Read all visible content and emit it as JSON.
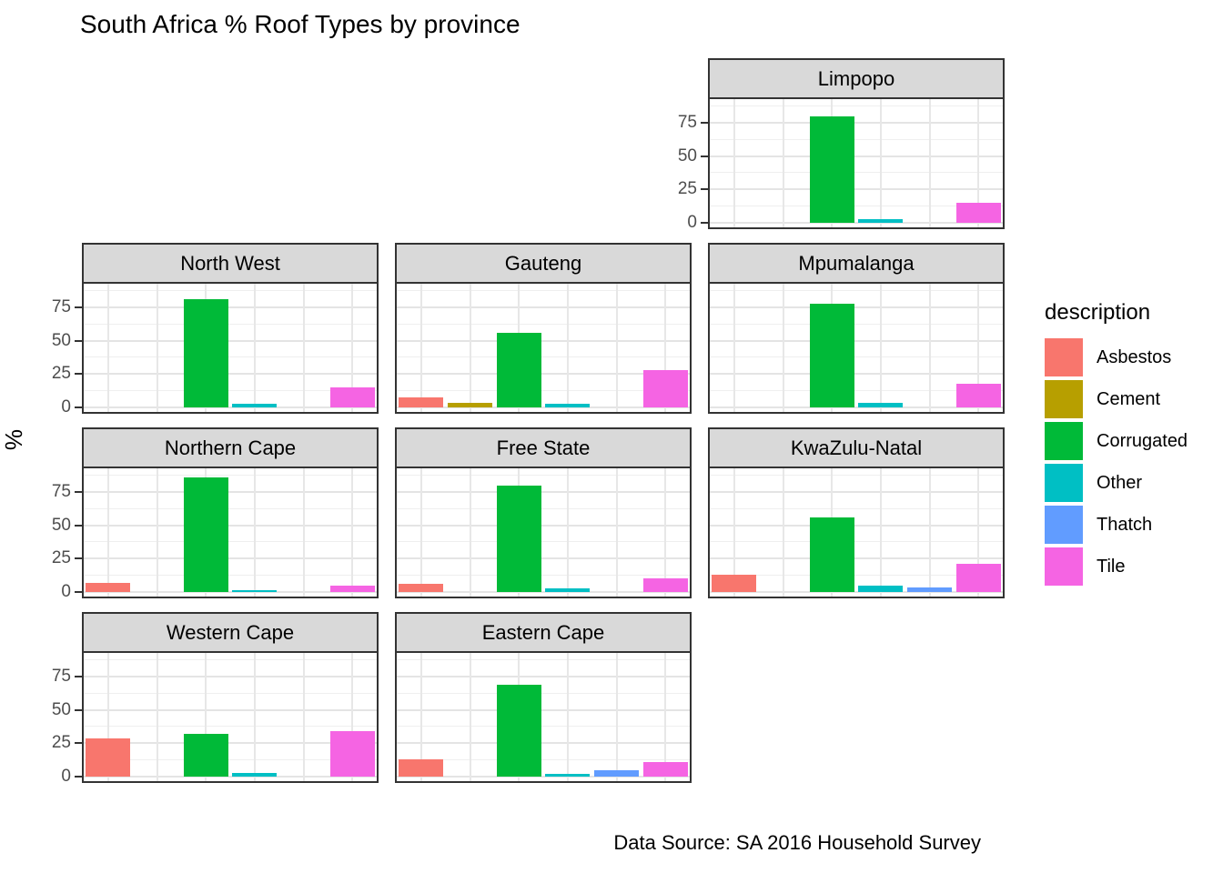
{
  "title": "South Africa % Roof Types by province",
  "caption": "Data Source: SA 2016 Household Survey",
  "ylabel": "%",
  "legend": {
    "title": "description",
    "items": [
      {
        "label": "Asbestos",
        "color": "#F8766D"
      },
      {
        "label": "Cement",
        "color": "#B79F00"
      },
      {
        "label": "Corrugated",
        "color": "#00BA38"
      },
      {
        "label": "Other",
        "color": "#00BFC4"
      },
      {
        "label": "Thatch",
        "color": "#619CFF"
      },
      {
        "label": "Tile",
        "color": "#F564E3"
      }
    ]
  },
  "chart_data": {
    "type": "bar",
    "layout": "geofacet-small-multiples",
    "categories": [
      "Asbestos",
      "Cement",
      "Corrugated",
      "Other",
      "Thatch",
      "Tile"
    ],
    "colors": {
      "Asbestos": "#F8766D",
      "Cement": "#B79F00",
      "Corrugated": "#00BA38",
      "Other": "#00BFC4",
      "Thatch": "#619CFF",
      "Tile": "#F564E3"
    },
    "yticks": [
      0,
      25,
      50,
      75
    ],
    "ylim": [
      0,
      92
    ],
    "grid": true,
    "legend_position": "right",
    "facets": [
      {
        "name": "Limpopo",
        "grid_row": 1,
        "grid_col": 3,
        "show_y_axis": true,
        "values": {
          "Corrugated": 80,
          "Other": 3,
          "Tile": 15
        }
      },
      {
        "name": "North West",
        "grid_row": 2,
        "grid_col": 1,
        "show_y_axis": true,
        "values": {
          "Corrugated": 81,
          "Other": 3,
          "Tile": 15
        }
      },
      {
        "name": "Gauteng",
        "grid_row": 2,
        "grid_col": 2,
        "show_y_axis": false,
        "values": {
          "Asbestos": 7.5,
          "Cement": 3.5,
          "Corrugated": 56,
          "Other": 3,
          "Tile": 28
        }
      },
      {
        "name": "Mpumalanga",
        "grid_row": 2,
        "grid_col": 3,
        "show_y_axis": false,
        "values": {
          "Corrugated": 78,
          "Other": 3.5,
          "Tile": 18
        }
      },
      {
        "name": "Northern Cape",
        "grid_row": 3,
        "grid_col": 1,
        "show_y_axis": true,
        "values": {
          "Asbestos": 7,
          "Corrugated": 86,
          "Other": 1.5,
          "Tile": 5
        }
      },
      {
        "name": "Free State",
        "grid_row": 3,
        "grid_col": 2,
        "show_y_axis": false,
        "values": {
          "Asbestos": 6,
          "Corrugated": 80,
          "Other": 2.5,
          "Tile": 10.5
        }
      },
      {
        "name": "KwaZulu-Natal",
        "grid_row": 3,
        "grid_col": 3,
        "show_y_axis": false,
        "values": {
          "Asbestos": 13,
          "Corrugated": 56,
          "Other": 4.5,
          "Thatch": 3.5,
          "Tile": 21
        }
      },
      {
        "name": "Western Cape",
        "grid_row": 4,
        "grid_col": 1,
        "show_y_axis": true,
        "values": {
          "Asbestos": 28.5,
          "Corrugated": 32,
          "Other": 3,
          "Tile": 34
        }
      },
      {
        "name": "Eastern Cape",
        "grid_row": 4,
        "grid_col": 2,
        "show_y_axis": false,
        "values": {
          "Asbestos": 13,
          "Corrugated": 69,
          "Other": 2,
          "Thatch": 4.5,
          "Tile": 11
        }
      }
    ]
  }
}
